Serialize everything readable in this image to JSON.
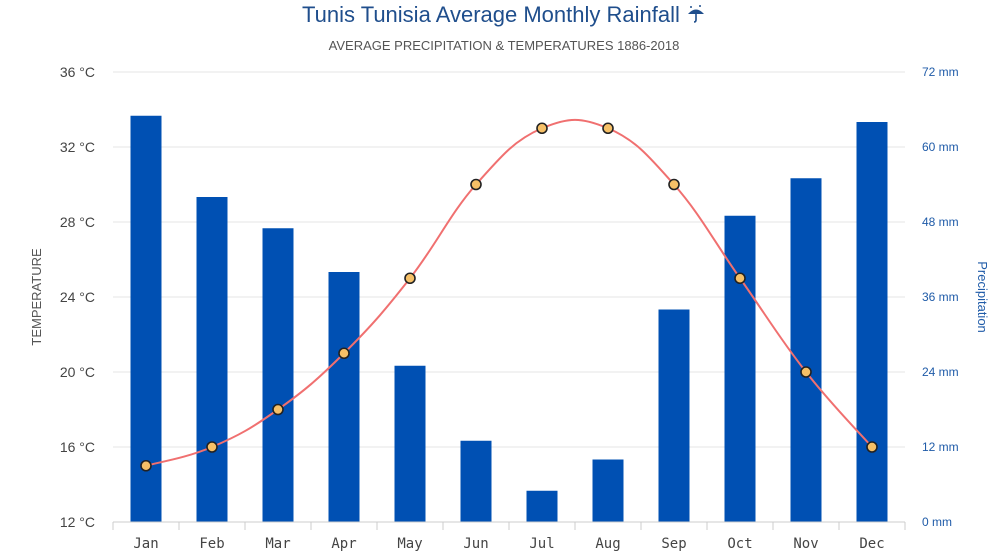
{
  "chart_data": {
    "type": "bar",
    "title": "Tunis Tunisia Average Monthly Rainfall",
    "title_icon": "umbrella-rain-icon",
    "subtitle": "AVERAGE PRECIPITATION & TEMPERATURES 1886-2018",
    "categories": [
      "Jan",
      "Feb",
      "Mar",
      "Apr",
      "May",
      "Jun",
      "Jul",
      "Aug",
      "Sep",
      "Oct",
      "Nov",
      "Dec"
    ],
    "series": [
      {
        "name": "Precipitation",
        "type": "bar",
        "axis": "right",
        "unit": "mm",
        "color": "#0050b3",
        "values": [
          65,
          52,
          47,
          40,
          25,
          13,
          5,
          10,
          34,
          49,
          55,
          64
        ]
      },
      {
        "name": "Temperature",
        "type": "line",
        "axis": "left",
        "unit": "°C",
        "color": "#f07070",
        "marker_fill": "#f6c067",
        "values": [
          15,
          16,
          18,
          21,
          25,
          30,
          33,
          33,
          30,
          25,
          20,
          16
        ]
      }
    ],
    "y_left": {
      "label": "TEMPERATURE",
      "range": [
        12,
        36
      ],
      "ticks": [
        "36 °C",
        "32 °C",
        "28 °C",
        "24 °C",
        "20 °C",
        "16 °C",
        "12 °C"
      ],
      "tick_values": [
        36,
        32,
        28,
        24,
        20,
        16,
        12
      ]
    },
    "y_right": {
      "label": "Precipitation",
      "range": [
        0,
        72
      ],
      "ticks": [
        "72 mm",
        "60 mm",
        "48 mm",
        "36 mm",
        "24 mm",
        "12 mm",
        "0 mm"
      ],
      "tick_values": [
        72,
        60,
        48,
        36,
        24,
        12,
        0
      ]
    },
    "grid": true,
    "legend": "none"
  }
}
